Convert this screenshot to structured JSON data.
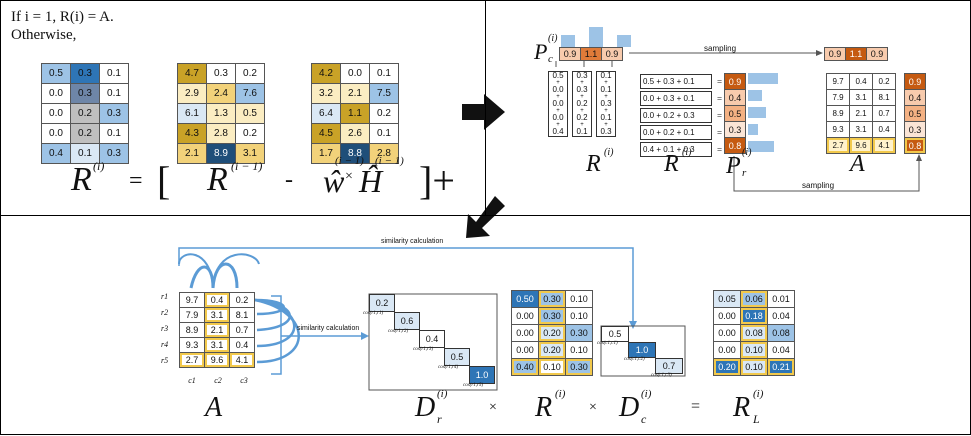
{
  "panel1": {
    "text_line1": "If i = 1, R(i) = A.",
    "text_line2": "Otherwise,",
    "m1": [
      [
        "0.5",
        "0.3",
        "0.1"
      ],
      [
        "0.0",
        "0.3",
        "0.1"
      ],
      [
        "0.0",
        "0.2",
        "0.3"
      ],
      [
        "0.0",
        "0.2",
        "0.1"
      ],
      [
        "0.4",
        "0.1",
        "0.3"
      ]
    ],
    "m2": [
      [
        "4.7",
        "0.3",
        "0.2"
      ],
      [
        "2.9",
        "2.4",
        "7.6"
      ],
      [
        "6.1",
        "1.3",
        "0.5"
      ],
      [
        "4.3",
        "2.8",
        "0.2"
      ],
      [
        "2.1",
        "8.9",
        "3.1"
      ]
    ],
    "m3": [
      [
        "4.2",
        "0.0",
        "0.1"
      ],
      [
        "3.2",
        "2.1",
        "7.5"
      ],
      [
        "6.4",
        "1.1",
        "0.2"
      ],
      [
        "4.5",
        "2.6",
        "0.1"
      ],
      [
        "1.7",
        "8.8",
        "2.8"
      ]
    ],
    "eq_R": "R",
    "eq_sup_i": "(i)",
    "eq_equals": "=",
    "eq_open": "[",
    "eq_R2": "R",
    "eq_sup_i1": "(i − 1)",
    "eq_minus": "-",
    "eq_W": "ŵ",
    "eq_times": "×",
    "eq_H": "Ĥ",
    "eq_sup_w": "(i − 1)",
    "eq_sup_h": "(i − 1)",
    "eq_close": "]+"
  },
  "panel2": {
    "Pc_label": "P",
    "Pc_sub": "c",
    "Pc_sup": "(i)",
    "Pc_values": [
      "0.9",
      "1.1",
      "0.9"
    ],
    "sampling_top": "sampling",
    "sampled": [
      "0.9",
      "1.1",
      "0.9"
    ],
    "R_cols": [
      [
        "0.5",
        "0.0",
        "0.0",
        "0.0",
        "0.4"
      ],
      [
        "0.3",
        "0.3",
        "0.2",
        "0.2",
        "0.1"
      ],
      [
        "0.1",
        "0.1",
        "0.3",
        "0.1",
        "0.3"
      ]
    ],
    "sums": [
      "0.5 + 0.3 + 0.1",
      "0.0 + 0.3 + 0.1",
      "0.0 + 0.2 + 0.3",
      "0.0 + 0.2 + 0.1",
      "0.4 + 0.1 + 0.3"
    ],
    "eqs": [
      "=",
      "=",
      "=",
      "=",
      "="
    ],
    "Pr_values": [
      "0.9",
      "0.4",
      "0.5",
      "0.3",
      "0.8"
    ],
    "A": [
      [
        "9.7",
        "0.4",
        "0.2"
      ],
      [
        "7.9",
        "3.1",
        "8.1"
      ],
      [
        "8.9",
        "2.1",
        "0.7"
      ],
      [
        "9.3",
        "3.1",
        "0.4"
      ],
      [
        "2.7",
        "9.6",
        "4.1"
      ]
    ],
    "A_side": [
      "0.9",
      "0.4",
      "0.5",
      "0.3",
      "0.8"
    ],
    "label_R1": "R",
    "label_R2": "R",
    "sup_R": "(i)",
    "label_Pr": "P",
    "sub_r": "r",
    "label_A": "A",
    "sampling_bottom": "sampling"
  },
  "panel3": {
    "sim_top": "similarity calculation",
    "sim_side": "similarity calculation",
    "row_labels": [
      "r1",
      "r2",
      "r3",
      "r4",
      "r5"
    ],
    "col_labels": [
      "c1",
      "c2",
      "c3"
    ],
    "A": [
      [
        "9.7",
        "0.4",
        "0.2"
      ],
      [
        "7.9",
        "3.1",
        "8.1"
      ],
      [
        "8.9",
        "2.1",
        "0.7"
      ],
      [
        "9.3",
        "3.1",
        "0.4"
      ],
      [
        "2.7",
        "9.6",
        "4.1"
      ]
    ],
    "Dr_diag": [
      "0.2",
      "0.6",
      "0.4",
      "0.5",
      "1.0"
    ],
    "Dr_cos": [
      "cos(r1,r1)",
      "cos(r1,r2)",
      "cos(r1,r3)",
      "cos(r1,r4)",
      "cos(r1,r5)"
    ],
    "Ri": [
      [
        "0.50",
        "0.30",
        "0.10"
      ],
      [
        "0.00",
        "0.30",
        "0.10"
      ],
      [
        "0.00",
        "0.20",
        "0.30"
      ],
      [
        "0.00",
        "0.20",
        "0.10"
      ],
      [
        "0.40",
        "0.10",
        "0.30"
      ]
    ],
    "Dc_diag": [
      "0.5",
      "1.0",
      "0.7"
    ],
    "Dc_cos": [
      "cos(c1,c1)",
      "cos(c1,c2)",
      "cos(c1,c3)"
    ],
    "RL": [
      [
        "0.05",
        "0.06",
        "0.01"
      ],
      [
        "0.00",
        "0.18",
        "0.04"
      ],
      [
        "0.00",
        "0.08",
        "0.08"
      ],
      [
        "0.00",
        "0.10",
        "0.04"
      ],
      [
        "0.20",
        "0.10",
        "0.21"
      ]
    ],
    "lbl_A": "A",
    "lbl_D": "D",
    "sub_r": "r",
    "sup_i": "(i)",
    "lbl_R": "R",
    "lbl_Dc": "D",
    "sub_c": "c",
    "lbl_RL": "R",
    "sub_L": "L",
    "times1": "×",
    "times2": "×",
    "equals": "="
  },
  "colors": {
    "blue_dark": "#2e75b6",
    "blue_mid": "#9dc3e6",
    "blue_light": "#dae8f5",
    "gold_dark": "#c9a227",
    "gold_mid": "#f2d27a",
    "gold_light": "#fbedc2",
    "orange_dark": "#c55a11",
    "orange_light": "#f4b183"
  }
}
